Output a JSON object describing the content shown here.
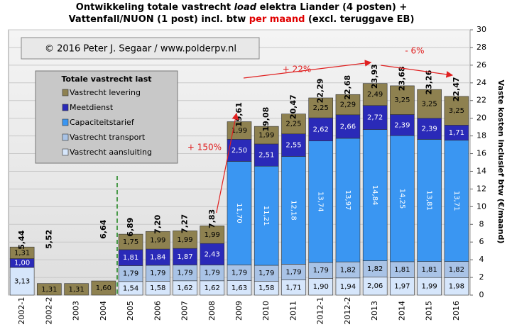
{
  "chart_data": {
    "type": "stacked_bar",
    "title": [
      "Ontwikkeling  totale vastrecht ",
      "load",
      " elektra Liander (4 posten) +",
      "Vattenfall/NUON  (1 post) incl. btw ",
      "per maand",
      " (excl. teruggave EB)"
    ],
    "copyright": "© 2016 Peter J. Segaar / www.polderpv.nl",
    "legend_title": "Totale vastrecht last",
    "y_label": "Vaste kosten inclusief btw (€/maand)",
    "categories": [
      "2002-1",
      "2002-2",
      "2003",
      "2004",
      "2005",
      "2006",
      "2007",
      "2008",
      "2009",
      "2010",
      "2011",
      "2012-1",
      "2012-2",
      "2013",
      "2014",
      "2015",
      "2016"
    ],
    "series": [
      {
        "name": "Vastrecht aansluiting",
        "color": "#d6e6fb",
        "values": [
          3.13,
          null,
          null,
          null,
          1.54,
          1.58,
          1.62,
          1.62,
          1.63,
          1.58,
          1.71,
          1.9,
          1.94,
          2.06,
          1.97,
          1.99,
          1.98
        ],
        "value_labels": [
          "3,13",
          null,
          null,
          null,
          "1,54",
          "1,58",
          "1,62",
          "1,62",
          "1,63",
          "1,58",
          "1,71",
          "1,90",
          "1,94",
          "2,06",
          "1,97",
          "1,99",
          "1,98"
        ]
      },
      {
        "name": "Vastrecht transport",
        "color": "#a9c3e6",
        "values": [
          null,
          null,
          null,
          null,
          1.79,
          1.79,
          1.79,
          1.79,
          1.79,
          1.79,
          1.79,
          1.79,
          1.82,
          1.82,
          1.81,
          1.81,
          1.82
        ],
        "value_labels": [
          null,
          null,
          null,
          null,
          "1,79",
          "1,79",
          "1,79",
          "1,79",
          "1,79",
          "1,79",
          "1,79",
          "1,79",
          "1,82",
          "1,82",
          "1,81",
          "1,81",
          "1,82"
        ]
      },
      {
        "name": "Capaciteitstarief",
        "color": "#3a96f2",
        "values": [
          null,
          null,
          null,
          null,
          null,
          null,
          null,
          null,
          11.7,
          11.21,
          12.18,
          13.74,
          13.97,
          14.84,
          14.25,
          13.81,
          13.71
        ],
        "value_labels": [
          null,
          null,
          null,
          null,
          null,
          null,
          null,
          null,
          "11,70",
          "11,21",
          "12,18",
          "13,74",
          "13,97",
          "14,84",
          "14,25",
          "13,81",
          "13,71"
        ]
      },
      {
        "name": "Meetdienst",
        "color": "#2a2ab8",
        "values": [
          1.0,
          null,
          null,
          null,
          1.81,
          1.84,
          1.87,
          2.43,
          2.5,
          2.51,
          2.55,
          2.62,
          2.66,
          2.72,
          2.39,
          2.39,
          1.71
        ],
        "value_labels": [
          "1,00",
          null,
          null,
          null,
          "1,81",
          "1,84",
          "1,87",
          "2,43",
          "2,50",
          "2,51",
          "2,55",
          "2,62",
          "2,66",
          "2,72",
          "2,39",
          "2,39",
          "1,71"
        ]
      },
      {
        "name": "Vastrecht levering",
        "color": "#8e8150",
        "values": [
          1.31,
          1.31,
          1.31,
          1.6,
          1.75,
          1.99,
          1.99,
          1.99,
          1.99,
          1.99,
          2.25,
          2.25,
          2.29,
          2.49,
          3.25,
          3.25,
          3.25
        ],
        "value_labels": [
          "1,31",
          "1,31",
          "1,31",
          "1,60",
          "1,75",
          "1,99",
          "1,99",
          "1,99",
          "1,99",
          "1,99",
          "2,25",
          "2,25",
          "2,29",
          "2,49",
          "3,25",
          "3,25",
          "3,25"
        ]
      }
    ],
    "totals": {
      "values": [
        5.44,
        5.52,
        null,
        6.64,
        6.89,
        7.2,
        7.27,
        7.83,
        19.61,
        19.08,
        20.47,
        22.29,
        22.68,
        23.93,
        23.68,
        23.26,
        22.47
      ],
      "value_labels": [
        "5,44",
        "5,52",
        null,
        "6,64",
        "6,89",
        "7,20",
        "7,27",
        "7,83",
        "19,61",
        "19,08",
        "20,47",
        "22,29",
        "22,68",
        "23,93",
        "23,68",
        "23,26",
        "22,47"
      ]
    },
    "annotations": [
      "+ 150%",
      "+ 22%",
      "- 6%"
    ],
    "ylim": [
      0,
      30
    ],
    "yticks": [
      0,
      2,
      4,
      6,
      8,
      10,
      12,
      14,
      16,
      18,
      20,
      22,
      24,
      26,
      28,
      30
    ],
    "grid": true
  }
}
